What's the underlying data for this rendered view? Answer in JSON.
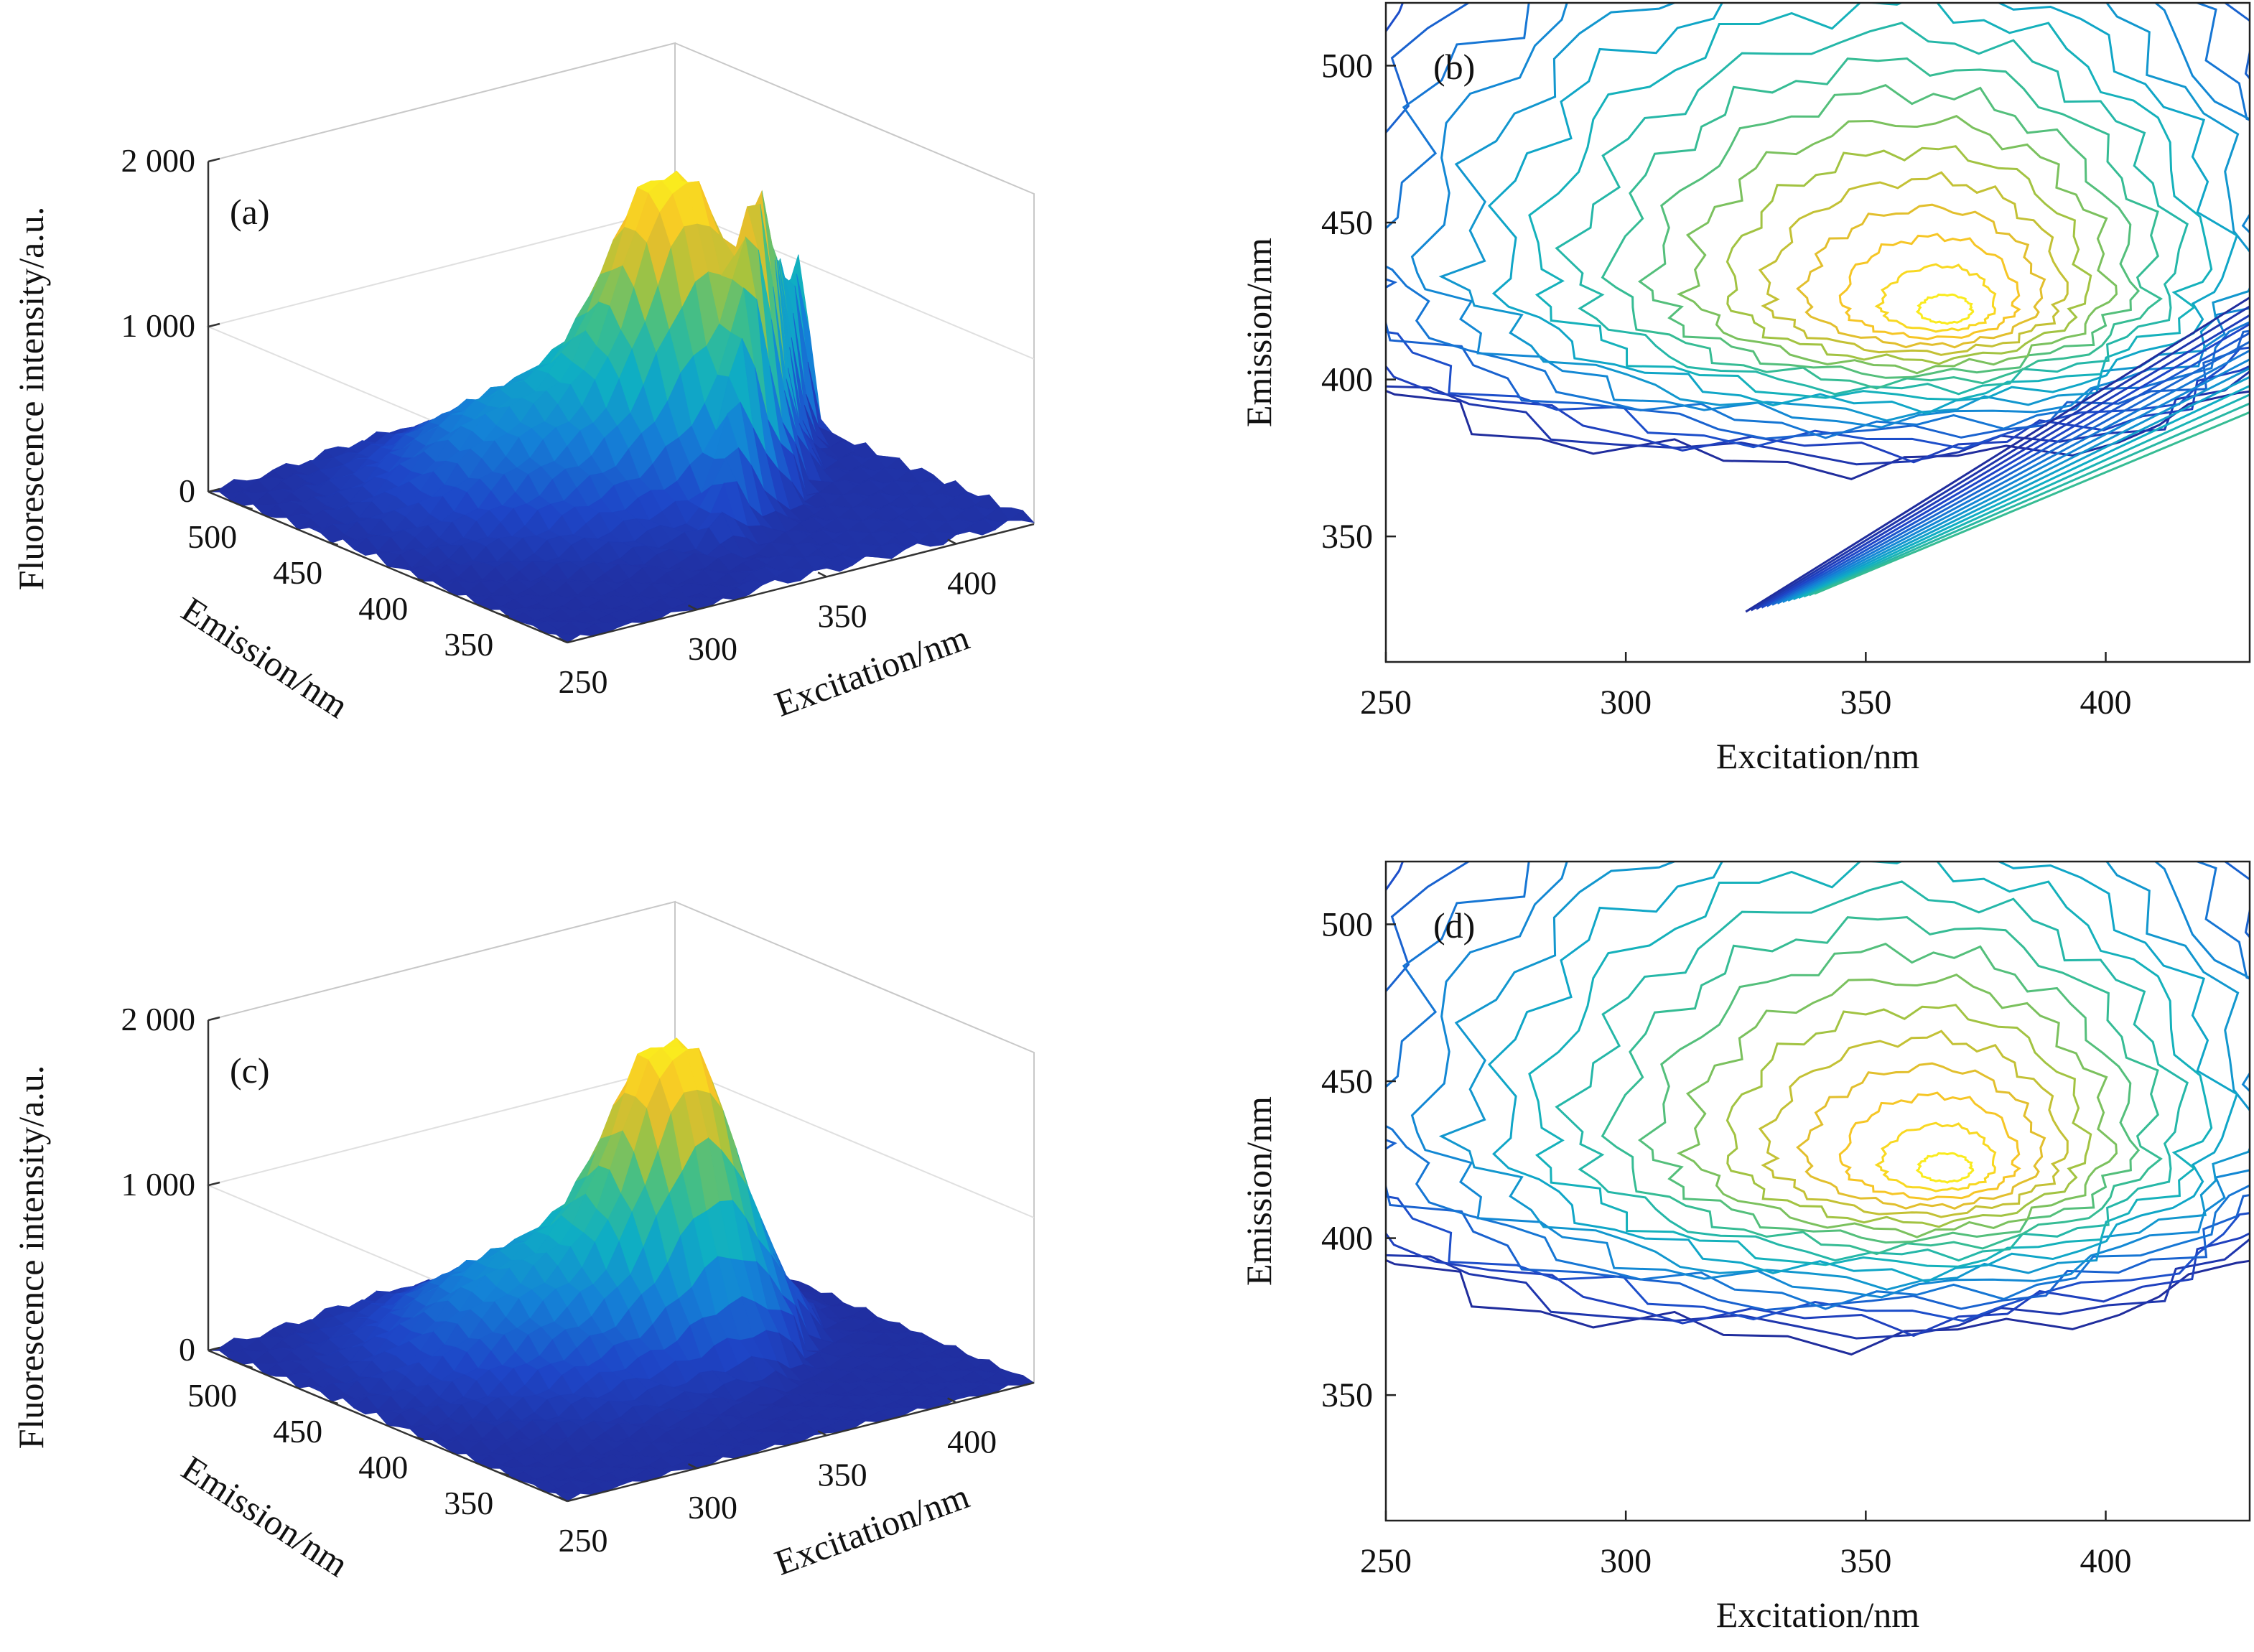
{
  "chart_data": [
    {
      "panel": "a",
      "type": "surface",
      "panel_label": "(a)",
      "zlabel": "Fluorescence intensity/a.u.",
      "xlabel": "Excitation/nm",
      "ylabel": "Emission/nm",
      "z_ticks": [
        "0",
        "1 000",
        "2 000"
      ],
      "x_ticks": [
        "250",
        "300",
        "350",
        "400"
      ],
      "y_ticks": [
        "500",
        "450",
        "400",
        "350"
      ],
      "zlim": [
        0,
        2000
      ],
      "peak": {
        "excitation": 365,
        "emission": 420,
        "intensity": 1850
      },
      "scatter_ridge": true
    },
    {
      "panel": "b",
      "type": "contour",
      "panel_label": "(b)",
      "xlabel": "Excitation/nm",
      "ylabel": "Emission/nm",
      "x_ticks": [
        "250",
        "300",
        "350",
        "400"
      ],
      "y_ticks": [
        "500",
        "450",
        "400",
        "350"
      ],
      "xlim": [
        250,
        430
      ],
      "ylim": [
        310,
        520
      ],
      "peak": {
        "excitation": 367,
        "emission": 422
      },
      "scatter_ridge": true
    },
    {
      "panel": "c",
      "type": "surface",
      "panel_label": "(c)",
      "zlabel": "Fluorescence intensity/a.u.",
      "xlabel": "Excitation/nm",
      "ylabel": "Emission/nm",
      "z_ticks": [
        "0",
        "1 000",
        "2 000"
      ],
      "x_ticks": [
        "250",
        "300",
        "350",
        "400"
      ],
      "y_ticks": [
        "500",
        "450",
        "400",
        "350"
      ],
      "zlim": [
        0,
        2000
      ],
      "peak": {
        "excitation": 365,
        "emission": 420,
        "intensity": 1800
      },
      "scatter_ridge": false
    },
    {
      "panel": "d",
      "type": "contour",
      "panel_label": "(d)",
      "xlabel": "Excitation/nm",
      "ylabel": "Emission/nm",
      "x_ticks": [
        "250",
        "300",
        "350",
        "400"
      ],
      "y_ticks": [
        "500",
        "450",
        "400",
        "350"
      ],
      "xlim": [
        250,
        430
      ],
      "ylim": [
        310,
        520
      ],
      "peak": {
        "excitation": 367,
        "emission": 422
      },
      "scatter_ridge": false
    }
  ]
}
